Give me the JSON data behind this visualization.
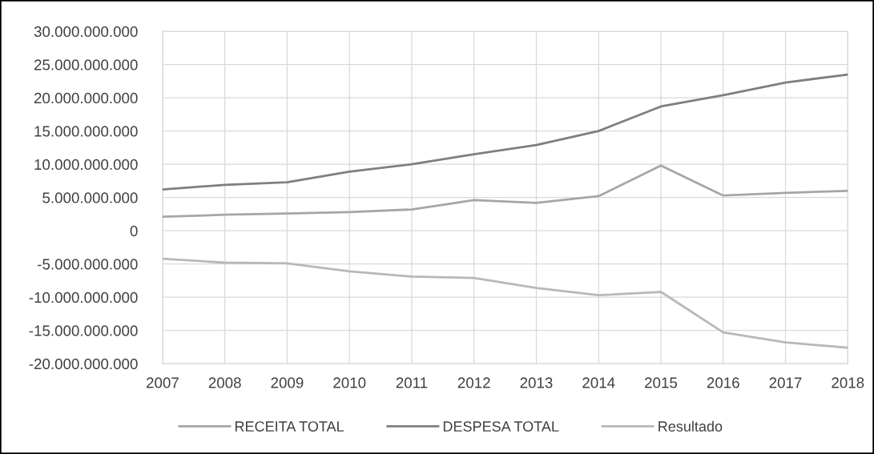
{
  "chart_data": {
    "type": "line",
    "categories": [
      "2007",
      "2008",
      "2009",
      "2010",
      "2011",
      "2012",
      "2013",
      "2014",
      "2015",
      "2016",
      "2017",
      "2018"
    ],
    "series": [
      {
        "name": "RECEITA TOTAL",
        "color": "#a6a6a6",
        "values": [
          2100000000,
          2400000000,
          2600000000,
          2800000000,
          3200000000,
          4600000000,
          4200000000,
          5200000000,
          9800000000,
          5300000000,
          5700000000,
          6000000000
        ]
      },
      {
        "name": "DESPESA TOTAL",
        "color": "#7f7f7f",
        "values": [
          6200000000,
          6900000000,
          7300000000,
          8900000000,
          10000000000,
          11500000000,
          12900000000,
          15000000000,
          18700000000,
          20400000000,
          22300000000,
          23500000000
        ]
      },
      {
        "name": "Resultado",
        "color": "#b8b8b8",
        "values": [
          -4200000000,
          -4800000000,
          -4900000000,
          -6100000000,
          -6900000000,
          -7100000000,
          -8600000000,
          -9700000000,
          -9200000000,
          -15300000000,
          -16800000000,
          -17600000000
        ]
      }
    ],
    "ylim": [
      -20000000000,
      30000000000
    ],
    "yticks": [
      {
        "value": -20000000000,
        "label": "-20.000.000.000"
      },
      {
        "value": -15000000000,
        "label": "-15.000.000.000"
      },
      {
        "value": -10000000000,
        "label": "-10.000.000.000"
      },
      {
        "value": -5000000000,
        "label": "-5.000.000.000"
      },
      0,
      {
        "value": 5000000000,
        "label": "5.000.000.000"
      },
      {
        "value": 10000000000,
        "label": "10.000.000.000"
      },
      {
        "value": 15000000000,
        "label": "15.000.000.000"
      },
      {
        "value": 20000000000,
        "label": "20.000.000.000"
      },
      {
        "value": 25000000000,
        "label": "25.000.000.000"
      },
      {
        "value": 30000000000,
        "label": "30.000.000.000"
      }
    ],
    "grid": true,
    "legend": "bottom",
    "marker": "none",
    "line_style": "solid"
  }
}
